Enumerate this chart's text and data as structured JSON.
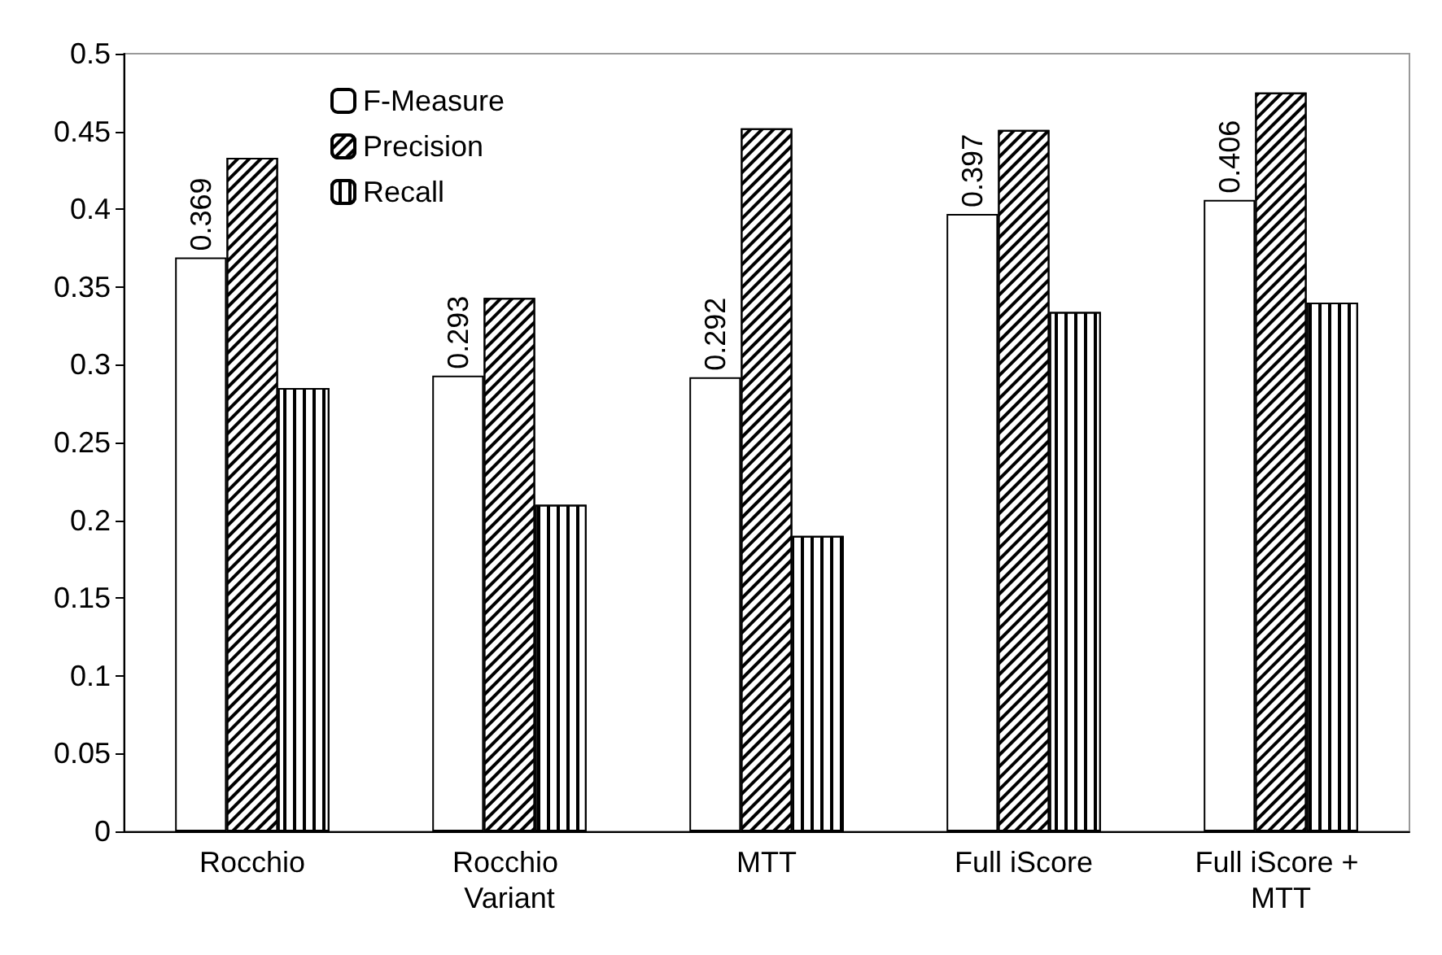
{
  "chart_data": {
    "type": "bar",
    "categories": [
      "Rocchio",
      "Rocchio Variant",
      "MTT",
      "Full iScore",
      "Full iScore + MTT"
    ],
    "series": [
      {
        "name": "F-Measure",
        "color": "#ffffff",
        "values": [
          0.369,
          0.293,
          0.292,
          0.397,
          0.406
        ],
        "value_labels": [
          "0.369",
          "0.293",
          "0.292",
          "0.397",
          "0.406"
        ]
      },
      {
        "name": "Precision",
        "color": "#ffffff",
        "values": [
          0.433,
          0.343,
          0.452,
          0.451,
          0.475
        ]
      },
      {
        "name": "Recall",
        "color": "#ffffff",
        "values": [
          0.285,
          0.21,
          0.19,
          0.334,
          0.34
        ]
      }
    ],
    "ylim": [
      0,
      0.5
    ],
    "yticks": [
      0,
      0.05,
      0.1,
      0.15,
      0.2,
      0.25,
      0.3,
      0.35,
      0.4,
      0.45,
      0.5
    ],
    "grid": false,
    "legend": "top left"
  }
}
